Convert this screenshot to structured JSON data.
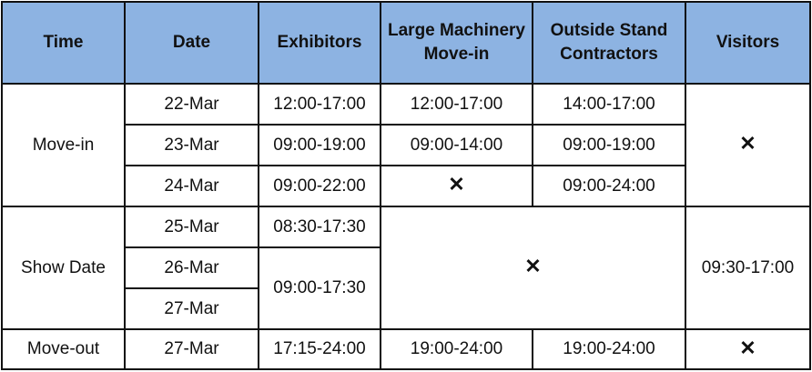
{
  "headers": {
    "time": "Time",
    "date": "Date",
    "exhibitors": "Exhibitors",
    "large_machinery": "Large Machinery Move-in",
    "outside_stand": "Outside Stand Contractors",
    "visitors": "Visitors"
  },
  "cross_symbol": "✕",
  "move_in": {
    "label": "Move-in",
    "rows": [
      {
        "date": "22-Mar",
        "exhibitors": "12:00-17:00",
        "large_machinery": "12:00-17:00",
        "outside_stand": "14:00-17:00"
      },
      {
        "date": "23-Mar",
        "exhibitors": "09:00-19:00",
        "large_machinery": "09:00-14:00",
        "outside_stand": "09:00-19:00"
      },
      {
        "date": "24-Mar",
        "exhibitors": "09:00-22:00",
        "large_machinery": "✕",
        "outside_stand": "09:00-24:00"
      }
    ],
    "visitors": "✕"
  },
  "show_date": {
    "label": "Show Date",
    "dates": [
      "25-Mar",
      "26-Mar",
      "27-Mar"
    ],
    "exhibitors_first": "08:30-17:30",
    "exhibitors_rest": "09:00-17:30",
    "machinery_contractors": "✕",
    "visitors": "09:30-17:00"
  },
  "move_out": {
    "label": "Move-out",
    "date": "27-Mar",
    "exhibitors": "17:15-24:00",
    "large_machinery": "19:00-24:00",
    "outside_stand": "19:00-24:00",
    "visitors": "✕"
  }
}
